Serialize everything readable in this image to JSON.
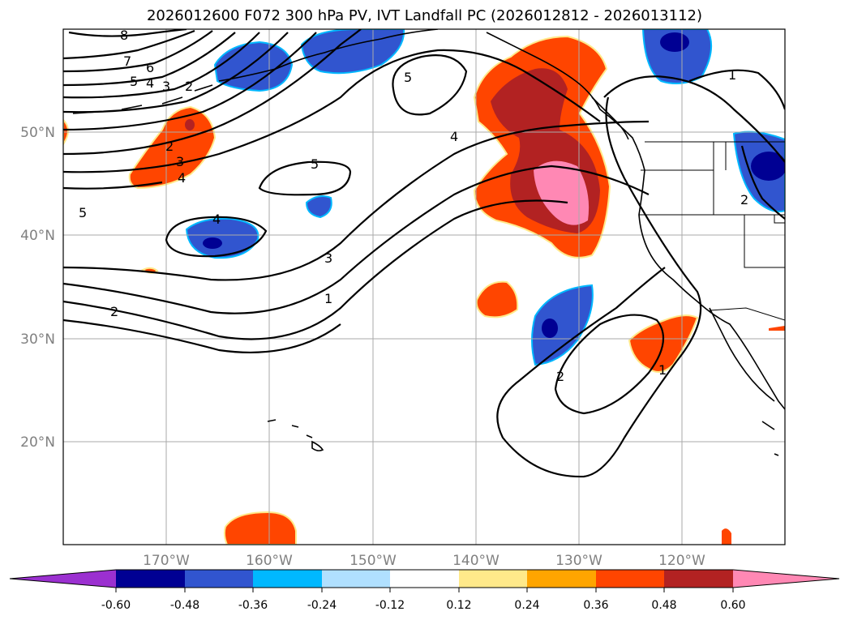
{
  "title": "2026012600 F072 300 hPa PV, IVT Landfall PC (2026012812 - 2026013112)",
  "map": {
    "lon_range": [
      -180,
      -110
    ],
    "lat_range": [
      10,
      60
    ],
    "lat_ticks": [
      {
        "value": 50,
        "label": "50°N"
      },
      {
        "value": 40,
        "label": "40°N"
      },
      {
        "value": 30,
        "label": "30°N"
      },
      {
        "value": 20,
        "label": "20°N"
      }
    ],
    "lon_ticks": [
      {
        "value": -170,
        "label": "170°W"
      },
      {
        "value": -160,
        "label": "160°W"
      },
      {
        "value": -150,
        "label": "150°W"
      },
      {
        "value": -140,
        "label": "140°W"
      },
      {
        "value": -130,
        "label": "130°W"
      },
      {
        "value": -120,
        "label": "120°W"
      }
    ],
    "contour_labels": [
      "8",
      "7",
      "6",
      "5",
      "4",
      "3",
      "2",
      "5",
      "4",
      "5",
      "4",
      "3",
      "1",
      "2",
      "5",
      "2",
      "3",
      "4",
      "2",
      "1",
      "1",
      "2"
    ]
  },
  "colorbar": {
    "colors": [
      "#9b30d0",
      "#000093",
      "#3155cf",
      "#00b8ff",
      "#b0e0ff",
      "#ffffff",
      "#ffe98a",
      "#ffa500",
      "#ff4500",
      "#b22222",
      "#ff88b4"
    ],
    "ticks": [
      "-0.60",
      "-0.48",
      "-0.36",
      "-0.24",
      "-0.12",
      "0.12",
      "0.24",
      "0.36",
      "0.48",
      "0.60"
    ]
  },
  "colors": {
    "neg_dark": "#000093",
    "neg_mid": "#3155cf",
    "neg_light": "#00b8ff",
    "pos_orange": "#ff4500",
    "pos_red": "#b22222",
    "pos_pink": "#ff88b4",
    "pos_yellow": "#ffe98a"
  }
}
